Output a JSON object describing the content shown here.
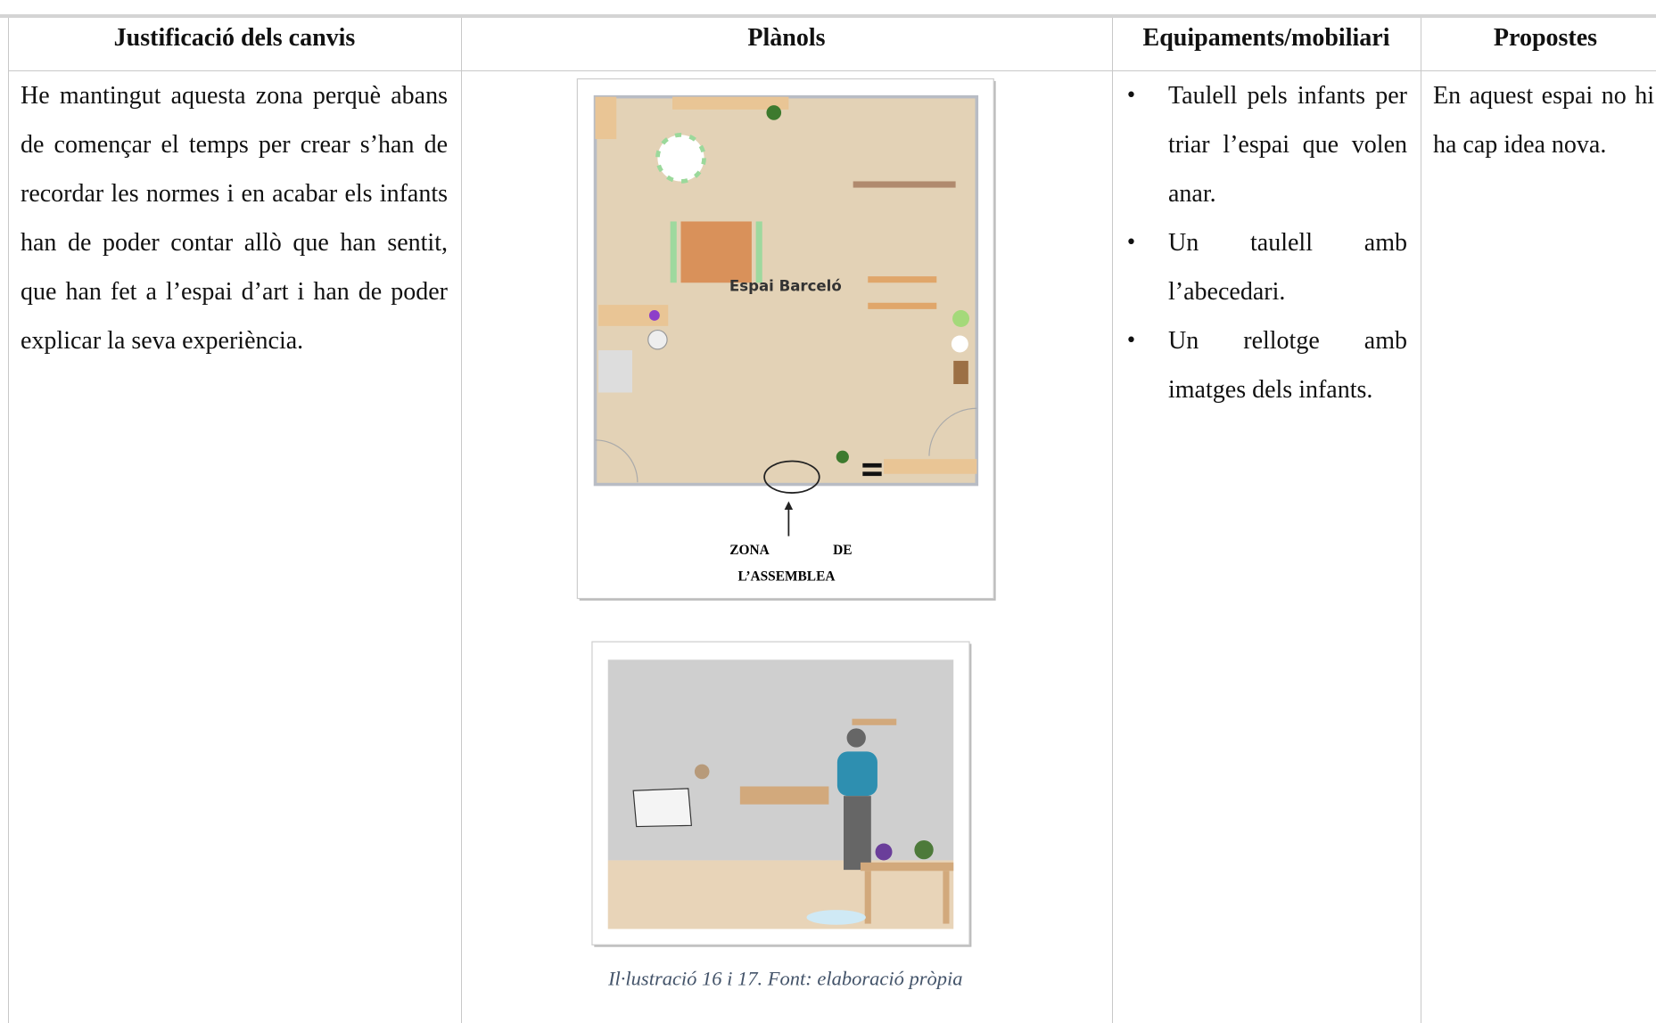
{
  "table": {
    "headers": [
      "Justificació dels canvis",
      "Plànols",
      "Equipaments/mobiliari",
      "Propostes"
    ],
    "rows": [
      {
        "justification": "He mantingut aquesta zona perquè abans de començar el temps per crear s’han de recordar les normes i en acabar els infants han de poder contar allò que han sentit, que han fet a l’espai d’art i han de poder explicar la seva experiència.",
        "plans": {
          "floor_plan_label": "Espai Barceló",
          "zone_label": [
            "ZONA",
            "DE",
            "L’ASSEMBLEA"
          ],
          "caption": "Il·lustració 16 i 17.  Font: elaboració pròpia"
        },
        "equipment": [
          "Taulell pels infants per triar l’espai que volen anar.",
          "Un taulell amb l’abecedari.",
          "Un rellotge amb imatges dels infants."
        ],
        "proposals": "En aquest espai no hi ha cap idea nova."
      }
    ]
  }
}
